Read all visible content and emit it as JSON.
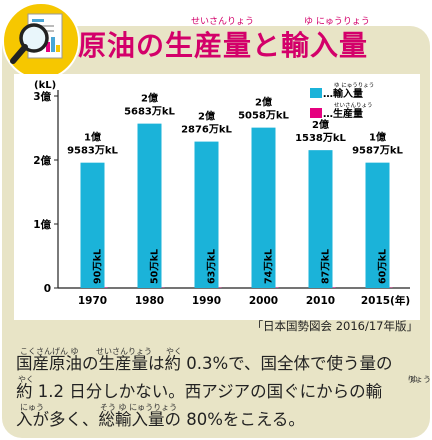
{
  "title": {
    "text": "原油の生産量と輸入量",
    "ruby_seisanryou": "せいさんりょう",
    "ruby_yunyuuryou": "ゆ にゅうりょう"
  },
  "chart_data": {
    "type": "bar",
    "unit_label": "(kL)",
    "categories": [
      "1970",
      "1980",
      "1990",
      "2000",
      "2010",
      "2015(年)"
    ],
    "series": [
      {
        "name": "輸入量",
        "ruby": "ゆ にゅうりょう",
        "color": "#1bb3d9",
        "values": [
          195830000,
          256830000,
          228760000,
          250580000,
          215380000,
          195870000
        ],
        "labels": [
          "1億\n9583万kL",
          "2億\n5683万kL",
          "2億\n2876万kL",
          "2億\n5058万kL",
          "2億\n1538万kL",
          "1億\n9587万kL"
        ]
      },
      {
        "name": "生産量",
        "ruby": "せいさんりょう",
        "color": "#e5007f",
        "values": [
          900000,
          500000,
          630000,
          740000,
          870000,
          600000
        ],
        "labels": [
          "90万kL",
          "50万kL",
          "63万kL",
          "74万kL",
          "87万kL",
          "60万kL"
        ]
      }
    ],
    "yticks": [
      "3億",
      "2億",
      "1億",
      "0"
    ],
    "ylim": [
      0,
      300000000
    ],
    "grid": false,
    "legend": "top-right",
    "legend_prefix": "…"
  },
  "source": "「日本国勢図会 2016/17年版」",
  "body": {
    "line1": "国産原油の生産量は約 0.3%で、国全体で使う量の",
    "line2": "約 1.2 日分しかない。西アジアの国ぐにからの輸",
    "line3": "入が多く、総輸入量の 80%をこえる。",
    "ruby_kokusangenyu": "こくさんげん ゆ",
    "ruby_seisanryou": "せいさんりょう",
    "ruby_yaku1": "やく",
    "ruby_ryou": "りょう",
    "ruby_yaku2": "やく",
    "ruby_yu": "ゆ",
    "ruby_nyuu": "にゅう",
    "ruby_souyunyuuryou": "そう ゆ にゅうりょう"
  },
  "icon": {
    "name": "magnifier-document-icon",
    "accent": "#f6c700"
  }
}
